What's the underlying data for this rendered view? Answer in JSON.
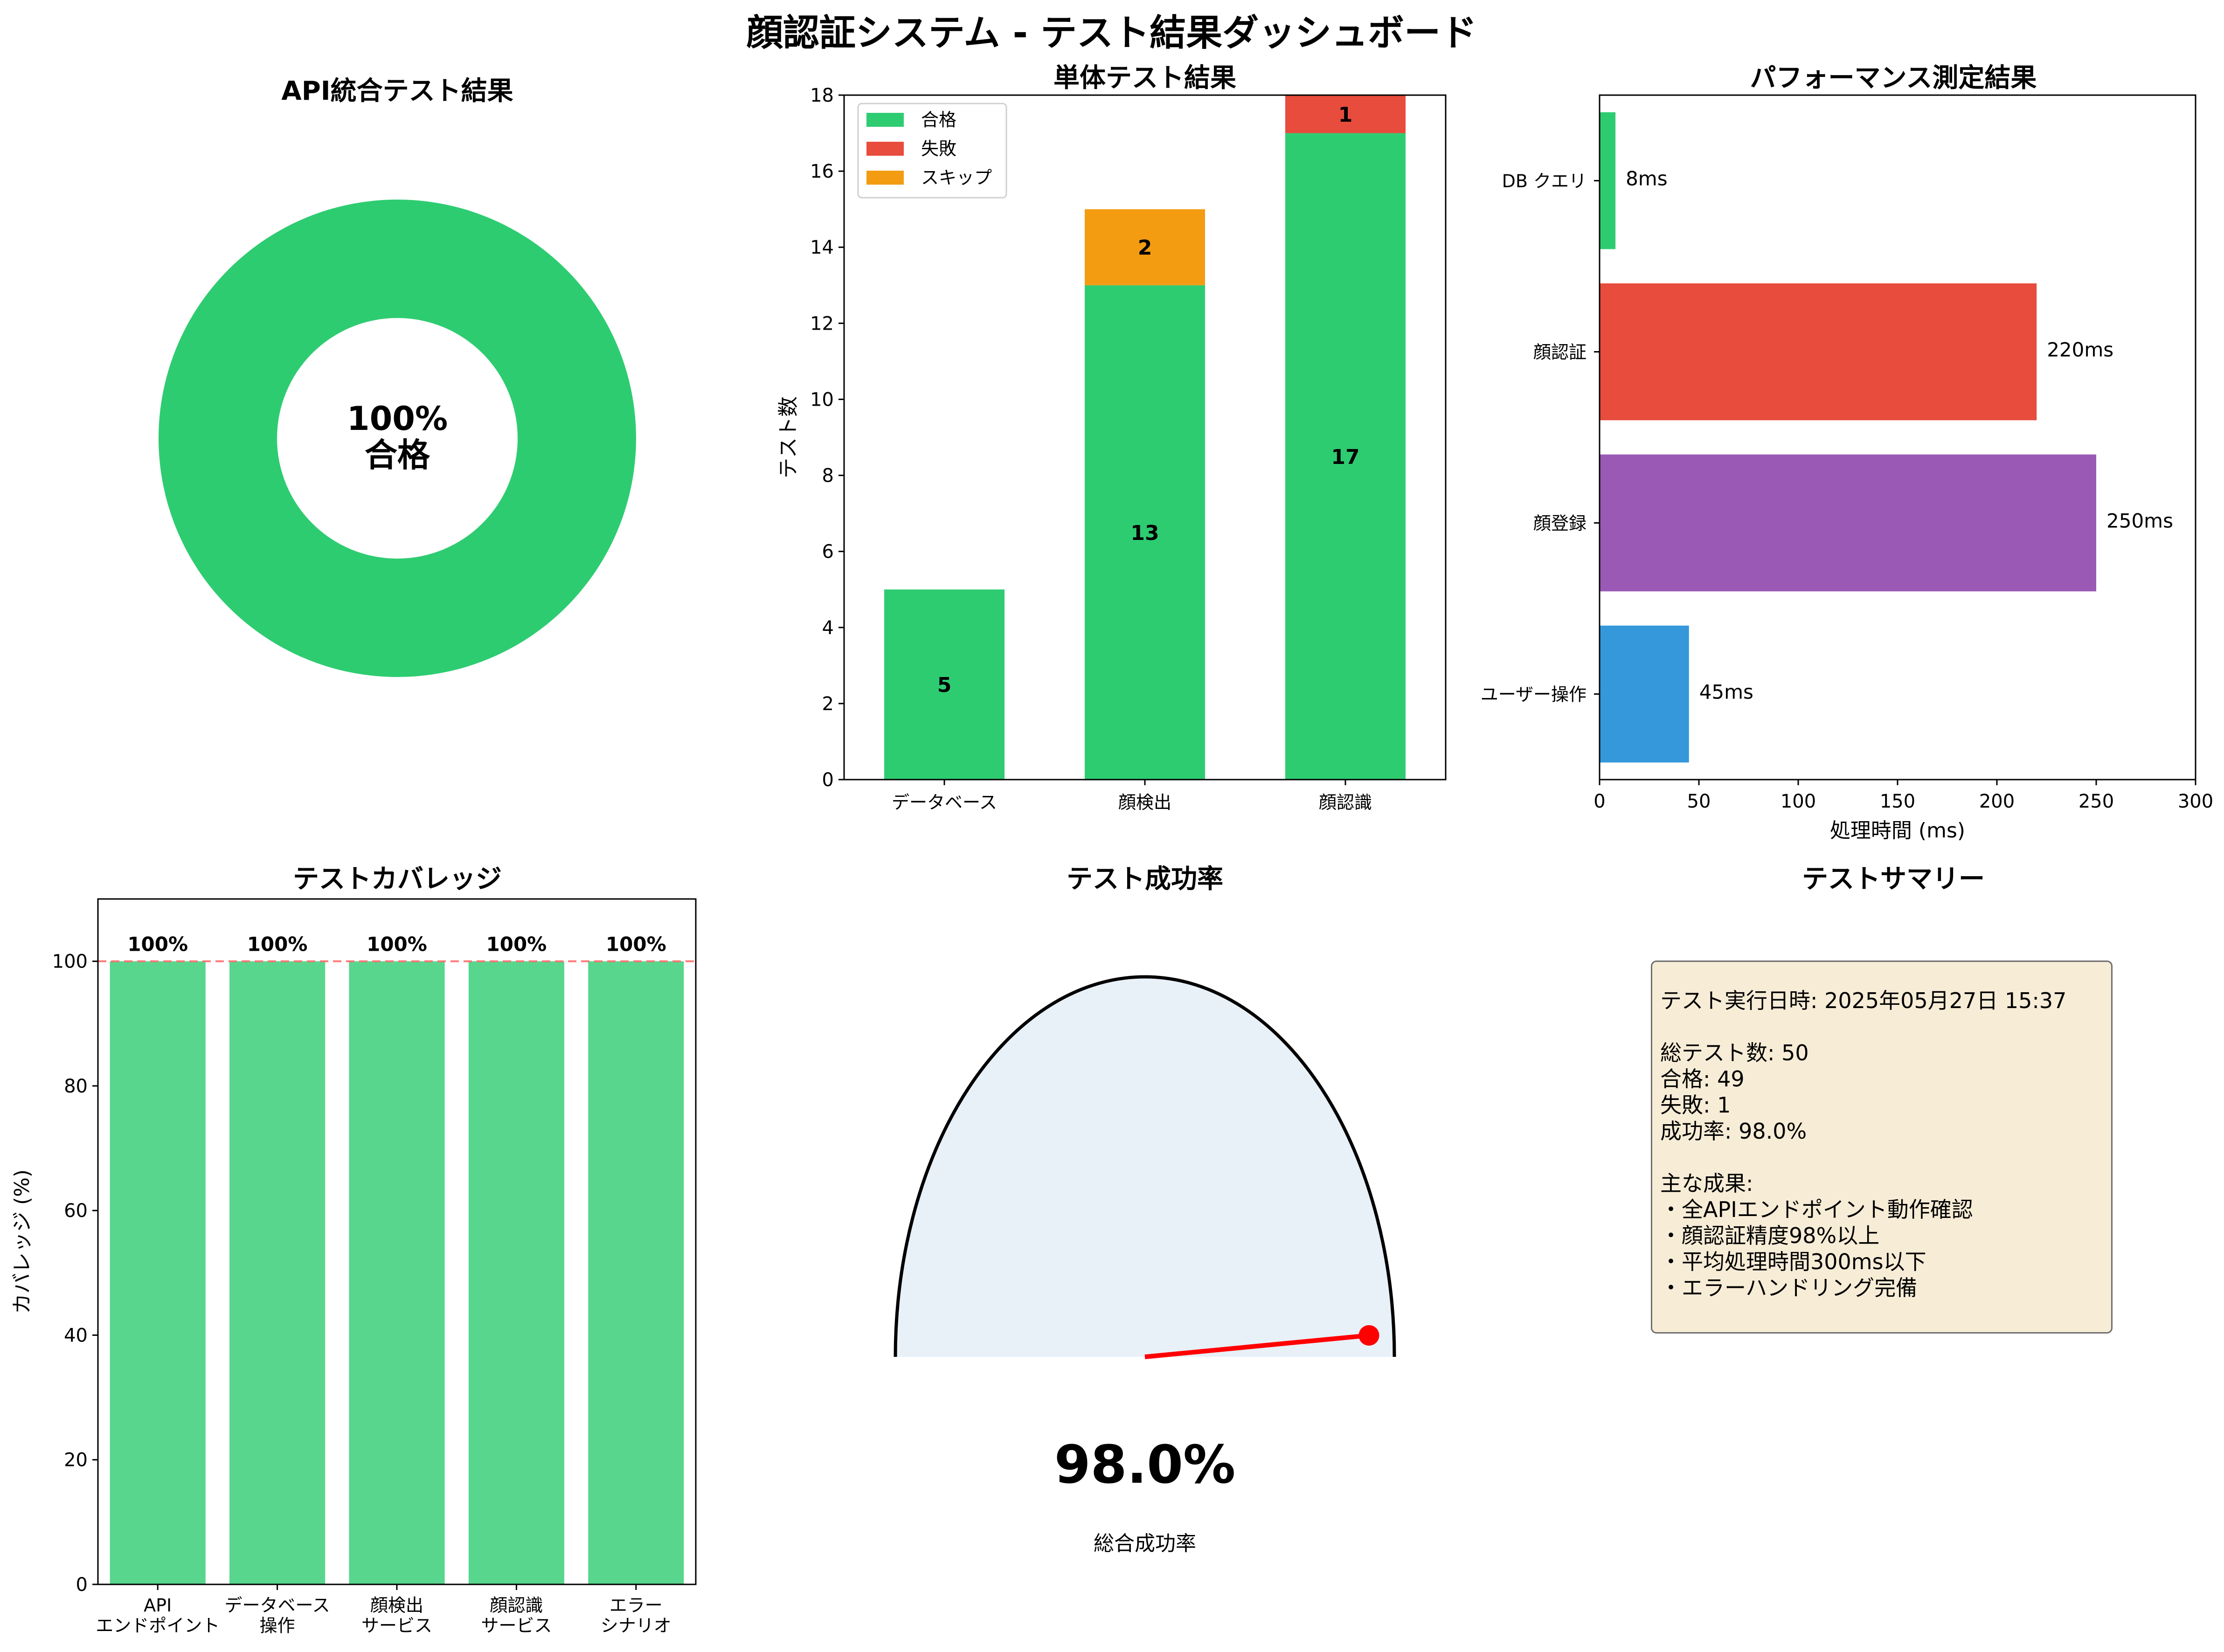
{
  "page_title": "顔認証システム - テスト結果ダッシュボード",
  "colors": {
    "pass": "#2ecc71",
    "fail": "#e74c3c",
    "skip": "#f39c12",
    "purple": "#9b59b6",
    "blue": "#3498db",
    "coverage": "#58d68d",
    "gauge_fill": "#e8f0f8",
    "needle": "#ff0000",
    "summary_bg": "#f7ecd6"
  },
  "chart_data": [
    {
      "type": "pie",
      "variant": "donut",
      "title": "API統合テスト結果",
      "slices": [
        {
          "label": "合格",
          "value": 100
        }
      ],
      "center_label": {
        "value": "100%",
        "label": "合格"
      }
    },
    {
      "type": "bar",
      "stacked": true,
      "title": "単体テスト結果",
      "xlabel": "",
      "ylabel": "テスト数",
      "categories": [
        "データベース",
        "顔検出",
        "顔認識"
      ],
      "series": [
        {
          "name": "合格",
          "values": [
            5,
            13,
            17
          ]
        },
        {
          "name": "失敗",
          "values": [
            0,
            0,
            1
          ]
        },
        {
          "name": "スキップ",
          "values": [
            0,
            2,
            0
          ]
        }
      ],
      "ylim": [
        0,
        18
      ],
      "yticks": [
        "0",
        "2",
        "4",
        "6",
        "8",
        "10",
        "12",
        "14",
        "16",
        "18"
      ],
      "legend": "top-left"
    },
    {
      "type": "bar",
      "orientation": "horizontal",
      "title": "パフォーマンス測定結果",
      "xlabel": "処理時間 (ms)",
      "categories": [
        "ユーザー操作",
        "顔登録",
        "顔認証",
        "DB クエリ"
      ],
      "values": [
        45,
        250,
        220,
        8
      ],
      "value_labels": [
        "45ms",
        "250ms",
        "220ms",
        "8ms"
      ],
      "xlim": [
        0,
        300
      ],
      "xticks": [
        "0",
        "50",
        "100",
        "150",
        "200",
        "250",
        "300"
      ]
    },
    {
      "type": "bar",
      "title": "テストカバレッジ",
      "ylabel": "カバレッジ (%)",
      "categories": [
        "API\nエンドポイント",
        "データベース\n操作",
        "顔検出\nサービス",
        "顔認識\nサービス",
        "エラー\nシナリオ"
      ],
      "values": [
        100,
        100,
        100,
        100,
        100
      ],
      "value_labels": [
        "100%",
        "100%",
        "100%",
        "100%",
        "100%"
      ],
      "ylim": [
        0,
        110
      ],
      "yticks": [
        "0",
        "20",
        "40",
        "60",
        "80",
        "100"
      ],
      "reference_line": 100
    },
    {
      "type": "gauge",
      "title": "テスト成功率",
      "value": 98.0,
      "value_label": "98.0%",
      "caption": "総合成功率"
    }
  ],
  "summary": {
    "title": "テストサマリー",
    "text": "テスト実行日時: 2025年05月27日 15:37\n\n総テスト数: 50\n合格: 49\n失敗: 1\n成功率: 98.0%\n\n主な成果:\n・全APIエンドポイント動作確認\n・顔認証精度98%以上\n・平均処理時間300ms以下\n・エラーハンドリング完備"
  }
}
